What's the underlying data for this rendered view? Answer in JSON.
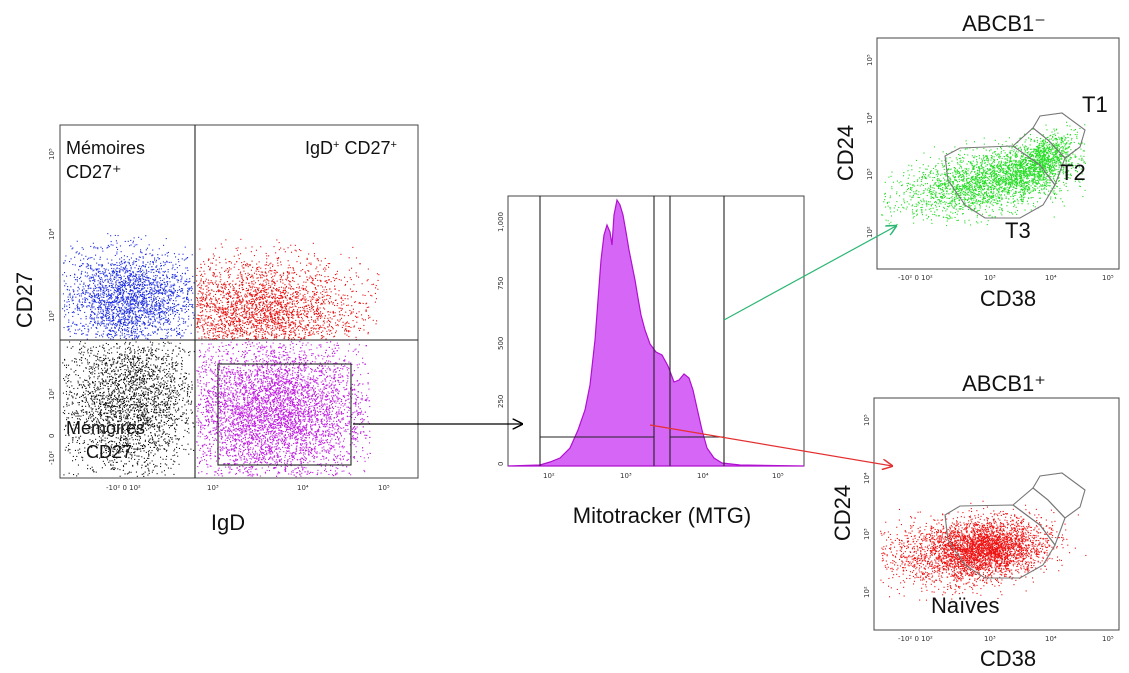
{
  "colors": {
    "memory_pos": "#1f2fe0",
    "double_pos": "#e81010",
    "memory_neg": "#111111",
    "naive_magenta": "#c020e0",
    "abcb1_neg_green": "#22dd22",
    "abcb1_pos_red": "#ee1111",
    "arrow_green": "#2bb673",
    "arrow_red": "#e53030",
    "arrow_black": "#000000"
  },
  "panel_a": {
    "x_axis_label": "IgD",
    "y_axis_label": "CD27",
    "q_top_left_line1": "Mémoires",
    "q_top_left_line2": "CD27⁺",
    "q_top_right_main": "IgD",
    "q_top_right_sup1": "+",
    "q_top_right_mid": " CD27",
    "q_top_right_sup2": "+",
    "q_bottom_left_line1": "Mémoires",
    "q_bottom_left_line2": "CD27⁻",
    "x_ticks": [
      "-10² 0 10²",
      "10³",
      "10⁴",
      "10⁵"
    ],
    "y_ticks": [
      "10⁵",
      "10⁴",
      "10³",
      "10²",
      "0",
      "-10²"
    ]
  },
  "panel_b": {
    "x_axis_label": "Mitotracker (MTG)",
    "x_ticks": [
      "10²",
      "10³",
      "10⁴",
      "10⁵"
    ],
    "y_ticks": [
      "1,000",
      "750",
      "500",
      "250",
      "0"
    ]
  },
  "panel_c": {
    "title": "ABCB1⁻",
    "x_axis_label": "CD38",
    "y_axis_label": "CD24",
    "gate_t1": "T1",
    "gate_t2": "T2",
    "gate_t3": "T3",
    "x_ticks": [
      "-10² 0 10²",
      "10³",
      "10⁴",
      "10⁵"
    ],
    "y_ticks": [
      "10⁵",
      "10⁴",
      "10³",
      "10²"
    ]
  },
  "panel_d": {
    "title": "ABCB1⁺",
    "x_axis_label": "CD38",
    "y_axis_label": "CD24",
    "population_label": "Naïves",
    "x_ticks": [
      "-10² 0 10²",
      "10³",
      "10⁴",
      "10⁵"
    ],
    "y_ticks": [
      "10⁵",
      "10⁴",
      "10³",
      "10²"
    ]
  }
}
